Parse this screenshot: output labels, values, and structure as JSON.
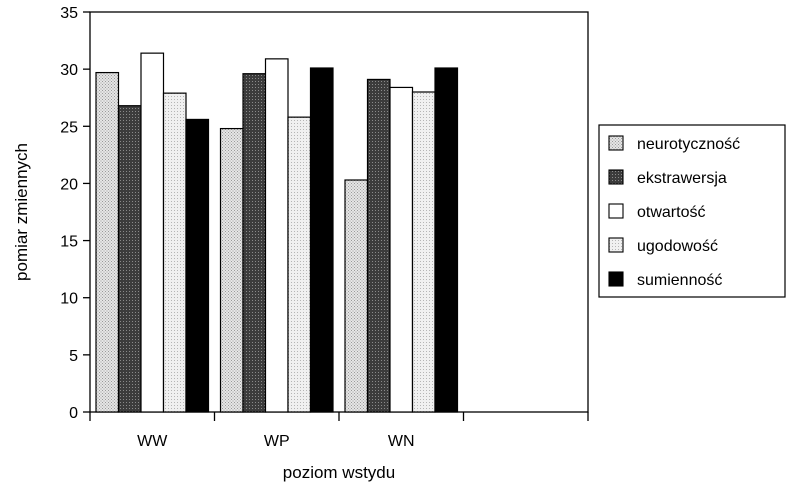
{
  "chart_data": {
    "type": "bar",
    "title": "",
    "xlabel": "poziom wstydu",
    "ylabel": "pomiar zmiennych",
    "ylim": [
      0,
      35
    ],
    "yticks": [
      0,
      5,
      10,
      15,
      20,
      25,
      30,
      35
    ],
    "categories": [
      "WW",
      "WP",
      "WN",
      ""
    ],
    "series": [
      {
        "name": "neurotyczność",
        "values": [
          29.7,
          24.8,
          20.3,
          null
        ],
        "color": "#c8c8c8"
      },
      {
        "name": "ekstrawersja",
        "values": [
          26.8,
          29.6,
          29.1,
          null
        ],
        "color": "#3a3a3a"
      },
      {
        "name": "otwartość",
        "values": [
          31.4,
          30.9,
          28.4,
          null
        ],
        "color": "#ffffff"
      },
      {
        "name": "ugodowość",
        "values": [
          27.9,
          25.8,
          28.0,
          null
        ],
        "color": "#e0e0e0"
      },
      {
        "name": "sumienność",
        "values": [
          25.6,
          30.1,
          30.1,
          null
        ],
        "color": "#000000"
      }
    ],
    "grid": false,
    "legend_position": "right"
  }
}
